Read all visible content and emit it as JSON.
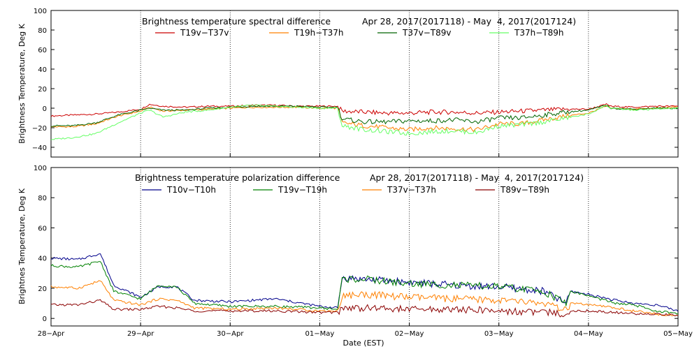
{
  "chart_data": [
    {
      "type": "line",
      "title": "Brightness temperature spectral difference",
      "date_range": "Apr 28, 2017(2017118) - May  4, 2017(2017124)",
      "ylabel": "Brightness Temperature, Deg K",
      "xlabel": "",
      "ylim": [
        -50,
        100
      ],
      "yticks": [
        -40,
        -20,
        0,
        20,
        40,
        60,
        80,
        100
      ],
      "ytick_labels": [
        "−40",
        "−20",
        "0",
        "20",
        "40",
        "60",
        "80",
        "100"
      ],
      "xlim": [
        0,
        7
      ],
      "xticks": [
        0,
        1,
        2,
        3,
        4,
        5,
        6,
        7
      ],
      "grid": "vertical dotted lines at day boundaries",
      "legend_position": "top",
      "series": [
        {
          "name": "T19v−T37v",
          "color": "#cc0000",
          "x": [
            0,
            0.25,
            0.5,
            0.75,
            1.0,
            1.1,
            1.25,
            1.5,
            1.75,
            2.0,
            2.25,
            2.5,
            2.75,
            3.0,
            3.2,
            3.25,
            3.5,
            3.75,
            4.0,
            4.25,
            4.5,
            4.75,
            5.0,
            5.25,
            5.5,
            5.75,
            6.0,
            6.2,
            6.25,
            6.5,
            6.75,
            7.0
          ],
          "y": [
            -8,
            -7,
            -6,
            -4,
            -1,
            4,
            2,
            1,
            2,
            2,
            3,
            3,
            2,
            2,
            2,
            -3,
            -4,
            -5,
            -5,
            -4,
            -4,
            -5,
            -4,
            -3,
            -2,
            -1,
            -1,
            4,
            2,
            1,
            2,
            2
          ]
        },
        {
          "name": "T19h−T37h",
          "color": "#ff8000",
          "x": [
            0,
            0.25,
            0.5,
            0.75,
            1.0,
            1.1,
            1.25,
            1.5,
            1.75,
            2.0,
            2.25,
            2.5,
            2.75,
            3.0,
            3.2,
            3.25,
            3.5,
            3.75,
            4.0,
            4.25,
            4.5,
            4.75,
            5.0,
            5.25,
            5.5,
            5.75,
            6.0,
            6.2,
            6.25,
            6.5,
            6.75,
            7.0
          ],
          "y": [
            -19,
            -19,
            -16,
            -8,
            -3,
            1,
            -3,
            -2,
            -1,
            0,
            1,
            1,
            1,
            0,
            0,
            -15,
            -18,
            -20,
            -22,
            -20,
            -21,
            -22,
            -16,
            -16,
            -12,
            -8,
            -5,
            2,
            0,
            -1,
            0,
            1
          ]
        },
        {
          "name": "T37v−T89v",
          "color": "#006400",
          "x": [
            0,
            0.25,
            0.5,
            0.75,
            1.0,
            1.1,
            1.25,
            1.5,
            1.75,
            2.0,
            2.25,
            2.5,
            2.75,
            3.0,
            3.2,
            3.25,
            3.5,
            3.75,
            4.0,
            4.25,
            4.5,
            4.75,
            5.0,
            5.25,
            5.5,
            5.75,
            6.0,
            6.2,
            6.25,
            6.5,
            6.75,
            7.0
          ],
          "y": [
            -18,
            -18,
            -15,
            -7,
            -2,
            0,
            -2,
            -2,
            0,
            1,
            2,
            2,
            2,
            1,
            1,
            -11,
            -14,
            -14,
            -13,
            -13,
            -12,
            -14,
            -10,
            -10,
            -7,
            -4,
            -2,
            3,
            0,
            -1,
            0,
            0
          ]
        },
        {
          "name": "T37h−T89h",
          "color": "#66ff66",
          "x": [
            0,
            0.25,
            0.5,
            0.75,
            1.0,
            1.1,
            1.25,
            1.5,
            1.75,
            2.0,
            2.25,
            2.5,
            2.75,
            3.0,
            3.2,
            3.25,
            3.5,
            3.75,
            4.0,
            4.25,
            4.5,
            4.75,
            5.0,
            5.25,
            5.5,
            5.75,
            6.0,
            6.2,
            6.25,
            6.5,
            6.75,
            7.0
          ],
          "y": [
            -32,
            -30,
            -26,
            -15,
            -5,
            -2,
            -9,
            -4,
            -2,
            1,
            3,
            2,
            1,
            0,
            0,
            -18,
            -22,
            -24,
            -26,
            -24,
            -23,
            -25,
            -18,
            -17,
            -14,
            -10,
            -6,
            3,
            0,
            -2,
            -1,
            0
          ]
        }
      ]
    },
    {
      "type": "line",
      "title": "Brightness temperature polarization difference",
      "date_range": "Apr 28, 2017(2017118) - May  4, 2017(2017124)",
      "ylabel": "Brightnes Temperature, Deg K",
      "xlabel": "Date (EST)",
      "ylim": [
        -5,
        100
      ],
      "yticks": [
        0,
        20,
        40,
        60,
        80,
        100
      ],
      "ytick_labels": [
        "0",
        "20",
        "40",
        "60",
        "80",
        "100"
      ],
      "xlim": [
        0,
        7
      ],
      "xticks": [
        0,
        1,
        2,
        3,
        4,
        5,
        6,
        7
      ],
      "xtick_labels": [
        "28−Apr",
        "29−Apr",
        "30−Apr",
        "01−May",
        "02−May",
        "03−May",
        "04−May",
        "05−May"
      ],
      "grid": "vertical dotted lines at day boundaries",
      "legend_position": "top",
      "series": [
        {
          "name": "T10v−T10h",
          "color": "#00008b",
          "x": [
            0,
            0.3,
            0.55,
            0.7,
            1.0,
            1.2,
            1.4,
            1.6,
            2.0,
            2.5,
            3.0,
            3.2,
            3.25,
            3.5,
            4.0,
            4.5,
            5.0,
            5.5,
            5.75,
            5.8,
            6.0,
            6.3,
            6.5,
            6.75,
            7.0
          ],
          "y": [
            40,
            39,
            43,
            22,
            14,
            21,
            21,
            12,
            11,
            13,
            8,
            7,
            27,
            26,
            24,
            22,
            21,
            18,
            10,
            18,
            16,
            12,
            10,
            9,
            5
          ]
        },
        {
          "name": "T19v−T19h",
          "color": "#008000",
          "x": [
            0,
            0.3,
            0.55,
            0.7,
            1.0,
            1.2,
            1.4,
            1.6,
            2.0,
            2.5,
            3.0,
            3.2,
            3.25,
            3.5,
            4.0,
            4.5,
            5.0,
            5.5,
            5.75,
            5.8,
            6.0,
            6.3,
            6.5,
            6.75,
            7.0
          ],
          "y": [
            35,
            34,
            38,
            18,
            13,
            22,
            21,
            10,
            8,
            8,
            7,
            6,
            26,
            26,
            23,
            22,
            21,
            18,
            10,
            18,
            15,
            10,
            9,
            5,
            3
          ]
        },
        {
          "name": "T37v−T37h",
          "color": "#ff8000",
          "x": [
            0,
            0.3,
            0.55,
            0.7,
            1.0,
            1.2,
            1.4,
            1.6,
            2.0,
            2.5,
            3.0,
            3.2,
            3.25,
            3.5,
            4.0,
            4.5,
            5.0,
            5.5,
            5.75,
            5.8,
            6.0,
            6.3,
            6.5,
            6.75,
            7.0
          ],
          "y": [
            21,
            20,
            25,
            12,
            9,
            13,
            12,
            7,
            6,
            7,
            5,
            5,
            15,
            16,
            14,
            13,
            12,
            10,
            5,
            10,
            9,
            7,
            5,
            3,
            2
          ]
        },
        {
          "name": "T89v−T89h",
          "color": "#8b0000",
          "x": [
            0,
            0.3,
            0.55,
            0.7,
            1.0,
            1.2,
            1.4,
            1.6,
            2.0,
            2.5,
            3.0,
            3.2,
            3.25,
            3.5,
            4.0,
            4.5,
            5.0,
            5.5,
            5.75,
            5.8,
            6.0,
            6.3,
            6.5,
            6.75,
            7.0
          ],
          "y": [
            9,
            9,
            12,
            6,
            6,
            8,
            7,
            5,
            5,
            5,
            4,
            4,
            7,
            7,
            6,
            6,
            5,
            4,
            3,
            5,
            5,
            4,
            3,
            3,
            2
          ]
        }
      ]
    }
  ]
}
